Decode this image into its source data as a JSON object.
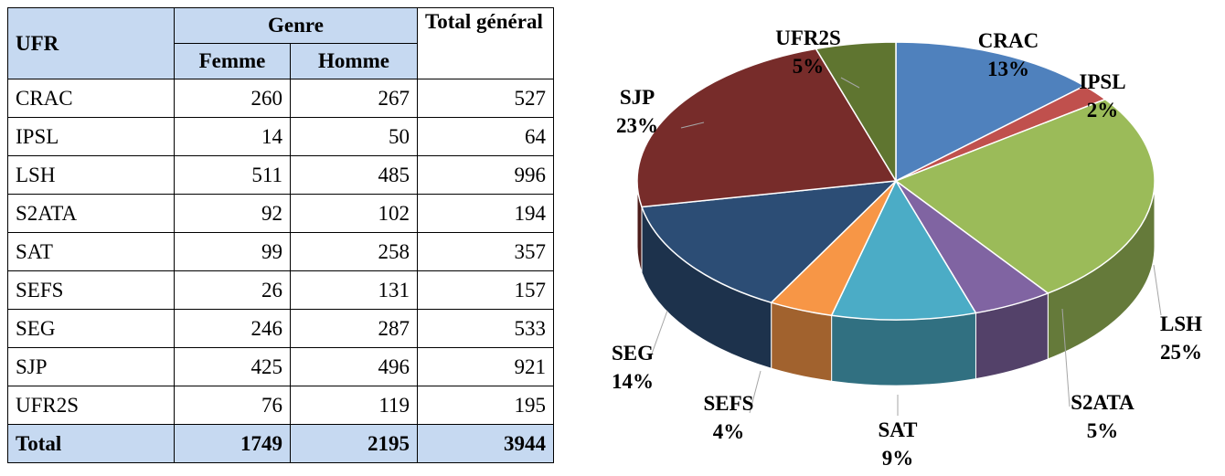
{
  "table": {
    "headers": {
      "ufr": "UFR",
      "genre": "Genre",
      "femme": "Femme",
      "homme": "Homme",
      "total": "Total général"
    },
    "rows": [
      [
        "CRAC",
        260,
        267,
        527
      ],
      [
        "IPSL",
        14,
        50,
        64
      ],
      [
        "LSH",
        511,
        485,
        996
      ],
      [
        "S2ATA",
        92,
        102,
        194
      ],
      [
        "SAT",
        99,
        258,
        357
      ],
      [
        "SEFS",
        26,
        131,
        157
      ],
      [
        "SEG",
        246,
        287,
        533
      ],
      [
        "SJP",
        425,
        496,
        921
      ],
      [
        "UFR2S",
        76,
        119,
        195
      ]
    ],
    "total": [
      "Total",
      1749,
      2195,
      3944
    ]
  },
  "chart_data": {
    "type": "pie",
    "categories": [
      "CRAC",
      "IPSL",
      "LSH",
      "S2ATA",
      "SAT",
      "SEFS",
      "SEG",
      "SJP",
      "UFR2S"
    ],
    "values": [
      13,
      2,
      25,
      5,
      9,
      4,
      14,
      23,
      5
    ],
    "value_labels": [
      "13%",
      "2%",
      "25%",
      "5%",
      "9%",
      "4%",
      "14%",
      "23%",
      "5%"
    ],
    "colors": [
      "#4f81bd",
      "#c0504d",
      "#9bbb59",
      "#8064a2",
      "#4bacc6",
      "#f79646",
      "#2c4d75",
      "#772c2a",
      "#5f7530"
    ]
  }
}
